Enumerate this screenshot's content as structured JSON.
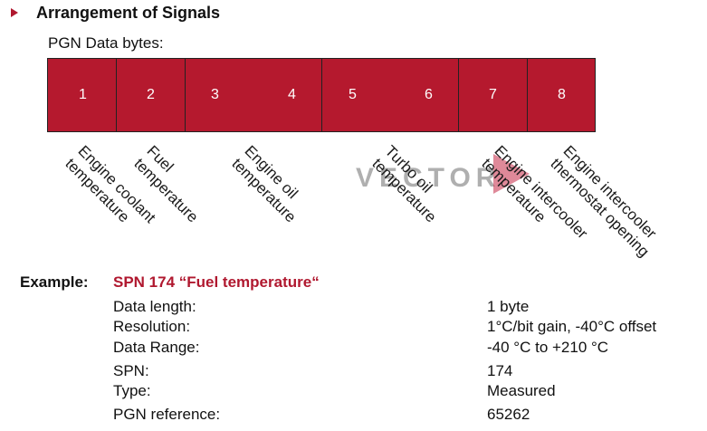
{
  "heading": "Arrangement of Signals",
  "subheading": "PGN Data bytes:",
  "bytes": [
    "1",
    "2",
    "3",
    "4",
    "5",
    "6",
    "7",
    "8"
  ],
  "signals": [
    "Engine coolant\ntemperature",
    "Fuel\ntemperature",
    "Engine oil\ntemperature",
    "Turbo oil\ntemperature",
    "Engine intercooler\ntemperature",
    "Engine intercooler\nthermostat opening"
  ],
  "watermark": "VECTOR",
  "example": {
    "label": "Example:",
    "title": "SPN 174 “Fuel temperature“",
    "rows": [
      {
        "key": "Data length:",
        "value": "1 byte"
      },
      {
        "key": "Resolution:",
        "value": "1°C/bit gain, -40°C offset"
      },
      {
        "key": "Data Range:",
        "value": "-40 °C to +210 °C"
      },
      {
        "key": "SPN:",
        "value": "174"
      },
      {
        "key": "Type:",
        "value": "Measured"
      },
      {
        "key": "PGN reference:",
        "value": "65262"
      }
    ]
  },
  "colors": {
    "accent": "#b0182f",
    "byte_fill": "#b5192e"
  }
}
